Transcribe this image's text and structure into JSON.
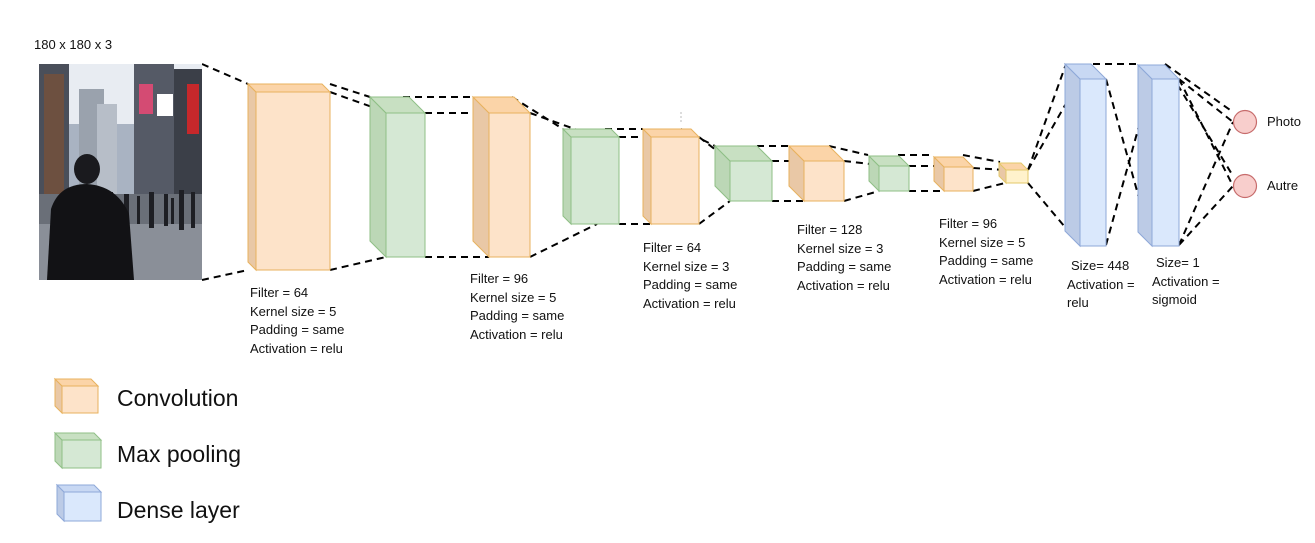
{
  "input": {
    "size_label": "180 x 180 x 3",
    "image_alt": "street scene photo"
  },
  "colors": {
    "conv_front": "#fde3c9",
    "conv_side": "#e9c8a6",
    "conv_top": "#fbd4a8",
    "conv_stroke": "#e8b25e",
    "pool_front": "#d5e8d4",
    "pool_side": "#bcd7b6",
    "pool_top": "#c8e0c2",
    "pool_stroke": "#8fbf86",
    "dense_front": "#dae8fc",
    "dense_side": "#bccbe6",
    "dense_top": "#c8d8f3",
    "dense_stroke": "#8ea8d8",
    "output_node": "#f8cecc",
    "output_stroke": "#c76c6c",
    "final_conv_front": "#fff2cc",
    "final_conv_stroke": "#e3c86a"
  },
  "layers": {
    "conv1": [
      "Filter = 64",
      "Kernel size = 5",
      "Padding = same",
      "Activation = relu"
    ],
    "conv2": [
      "Filter = 96",
      "Kernel size = 5",
      "Padding = same",
      "Activation = relu"
    ],
    "conv3": [
      "Filter = 64",
      "Kernel size = 3",
      "Padding = same",
      "Activation = relu"
    ],
    "conv4": [
      "Filter = 128",
      "Kernel size = 3",
      "Padding = same",
      "Activation = relu"
    ],
    "conv5": [
      "Filter = 96",
      "Kernel size = 5",
      "Padding = same",
      "Activation = relu"
    ],
    "dense1": [
      "Size= 448",
      "Activation =",
      "relu"
    ],
    "dense2": [
      "Size= 1",
      "Activation =",
      "sigmoid"
    ]
  },
  "outputs": [
    "Photo",
    "Autre"
  ],
  "legend": [
    {
      "label": "Convolution",
      "kind": "conv"
    },
    {
      "label": "Max pooling",
      "kind": "pool"
    },
    {
      "label": "Dense layer",
      "kind": "dense"
    }
  ]
}
